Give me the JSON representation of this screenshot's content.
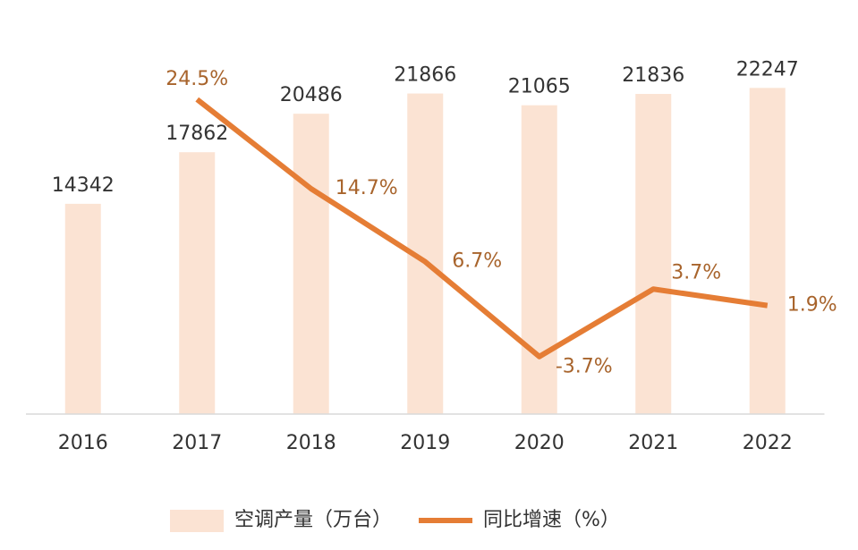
{
  "chart_data": {
    "type": "bar-line",
    "categories": [
      "2016",
      "2017",
      "2018",
      "2019",
      "2020",
      "2021",
      "2022"
    ],
    "series": [
      {
        "name": "空调产量（万台）",
        "type": "bar",
        "color": "#fbe3d3",
        "values": [
          14342,
          17862,
          20486,
          21866,
          21065,
          21836,
          22247
        ]
      },
      {
        "name": "同比增速（%）",
        "type": "line",
        "axis": "y2",
        "color": "#e57d35",
        "values": [
          null,
          24.5,
          14.7,
          6.7,
          -3.7,
          3.7,
          1.9
        ],
        "value_labels": [
          null,
          "24.5%",
          "14.7%",
          "6.7%",
          "-3.7%",
          "3.7%",
          "1.9%"
        ]
      }
    ],
    "ylim": [
      0,
      28000
    ],
    "y2lim": [
      -10,
      35
    ],
    "legend": "bottom"
  }
}
